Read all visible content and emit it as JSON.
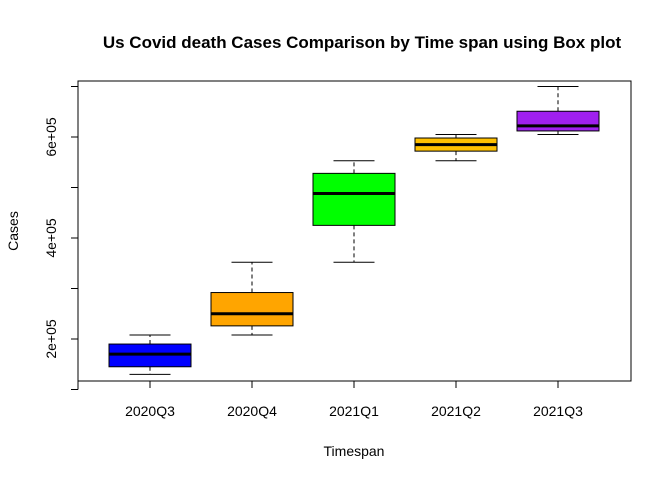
{
  "chart_data": {
    "type": "boxplot",
    "title": "Us Covid death Cases Comparison by Time span using Box plot",
    "xlabel": "Timespan",
    "ylabel": "Cases",
    "categories": [
      "2020Q3",
      "2020Q4",
      "2021Q1",
      "2021Q2",
      "2021Q3"
    ],
    "y_ticks": [
      200000,
      400000,
      600000
    ],
    "y_tick_labels": [
      "2e+05",
      "4e+05",
      "6e+05"
    ],
    "ylim": [
      90000,
      700000
    ],
    "grid": false,
    "legend": "none",
    "boxes": [
      {
        "category": "2020Q3",
        "min": 130000,
        "q1": 145000,
        "median": 170000,
        "q3": 190000,
        "max": 208000,
        "color": "#0000FF"
      },
      {
        "category": "2020Q4",
        "min": 208000,
        "q1": 226000,
        "median": 250000,
        "q3": 292000,
        "max": 352000,
        "color": "#FFA500"
      },
      {
        "category": "2021Q1",
        "min": 352000,
        "q1": 425000,
        "median": 488000,
        "q3": 528000,
        "max": 553000,
        "color": "#00FF00"
      },
      {
        "category": "2021Q2",
        "min": 553000,
        "q1": 572000,
        "median": 585000,
        "q3": 598000,
        "max": 605000,
        "color": "#FFC000"
      },
      {
        "category": "2021Q3",
        "min": 605000,
        "q1": 612000,
        "median": 622000,
        "q3": 651000,
        "max": 700000,
        "color": "#A020F0"
      }
    ]
  }
}
